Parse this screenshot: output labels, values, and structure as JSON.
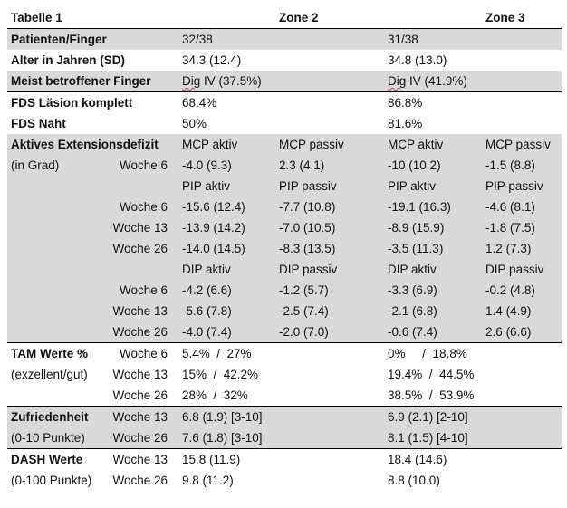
{
  "table": {
    "title": "Tabelle 1",
    "zone2": "Zone 2",
    "zone3": "Zone 3",
    "patients": {
      "label": "Patienten/Finger",
      "z2": "32/38",
      "z3": "31/38"
    },
    "age": {
      "label": "Alter in Jahren (SD)",
      "z2": "34.3 (12.4)",
      "z3": "34.8 (13.0)"
    },
    "finger": {
      "label": "Meist betroffener Finger",
      "z2_dig": "Dig",
      "z2_rest": " IV (37.5%)",
      "z3_dig": "Dig",
      "z3_rest": " IV (41.9%)"
    },
    "fds_lesion": {
      "label": "FDS Läsion komplett",
      "z2": "68.4%",
      "z3": "86.8%"
    },
    "fds_suture": {
      "label": "FDS Naht",
      "z2": "50%",
      "z3": "81.6%"
    },
    "ext_deficit": {
      "label": "Aktives Extensionsdefizit",
      "sublabel": "(in Grad)",
      "mcp": {
        "head": [
          "MCP aktiv",
          "MCP passiv",
          "MCP aktiv",
          "MCP passiv"
        ],
        "rows": [
          {
            "week": "Woche 6",
            "vals": [
              "-4.0 (9.3)",
              "2.3 (4.1)",
              "-10 (10.2)",
              "-1.5 (8.8)"
            ]
          }
        ]
      },
      "pip": {
        "head": [
          "PIP aktiv",
          "PIP passiv",
          "PIP aktiv",
          "PIP passiv"
        ],
        "rows": [
          {
            "week": "Woche 6",
            "vals": [
              "-15.6 (12.4)",
              "-7.7 (10.8)",
              "-19.1 (16.3)",
              "-4.6 (8.1)"
            ]
          },
          {
            "week": "Woche 13",
            "vals": [
              "-13.9 (14.2)",
              "-7.0 (10.5)",
              "-8.9 (15.9)",
              "-1.8 (7.5)"
            ]
          },
          {
            "week": "Woche 26",
            "vals": [
              "-14.0 (14.5)",
              "-8.3 (13.5)",
              "-3.5 (11.3)",
              "1.2 (7.3)"
            ]
          }
        ]
      },
      "dip": {
        "head": [
          "DIP aktiv",
          "DIP passiv",
          "DIP aktiv",
          "DIP passiv"
        ],
        "rows": [
          {
            "week": "Woche 6",
            "vals": [
              "-4.2 (6.6)",
              "-1.2 (5.7)",
              "-3.3 (6.9)",
              "-0.2 (4.8)"
            ]
          },
          {
            "week": "Woche 13",
            "vals": [
              "-5.6 (7.8)",
              "-2.5 (7.4)",
              "-2.1 (6.8)",
              "1.4 (4.9)"
            ]
          },
          {
            "week": "Woche 26",
            "vals": [
              "-4.0 (7.4)",
              "-2.0 (7.0)",
              "-0.6 (7.4)",
              "2.6 (6.6)"
            ]
          }
        ]
      }
    },
    "tam": {
      "label": "TAM Werte %",
      "sublabel": "(exzellent/gut)",
      "rows": [
        {
          "week": "Woche 6",
          "z2": "5.4%  /  27%",
          "z3": "0%     /  18.8%"
        },
        {
          "week": "Woche 13",
          "z2": "15%  /  42.2%",
          "z3": "19.4%  /  44.5%"
        },
        {
          "week": "Woche 26",
          "z2": "28%  /  32%",
          "z3": "38.5%  /  53.9%"
        }
      ]
    },
    "satisfaction": {
      "label": "Zufriedenheit",
      "sublabel": "(0-10 Punkte)",
      "rows": [
        {
          "week": "Woche 13",
          "z2": "6.8 (1.9) [3-10]",
          "z3": "6.9 (2.1) [2-10]"
        },
        {
          "week": "Woche 26",
          "z2": "7.6 (1.8) [3-10]",
          "z3": "8.1 (1.5) [4-10]"
        }
      ]
    },
    "dash": {
      "label": "DASH Werte",
      "sublabel": "(0-100 Punkte)",
      "rows": [
        {
          "week": "Woche 13",
          "z2": "15.8 (11.9)",
          "z3": "18.4 (14.6)"
        },
        {
          "week": "Woche 26",
          "z2": "9.8 (11.2)",
          "z3": "8.8 (10.0)"
        }
      ]
    }
  }
}
